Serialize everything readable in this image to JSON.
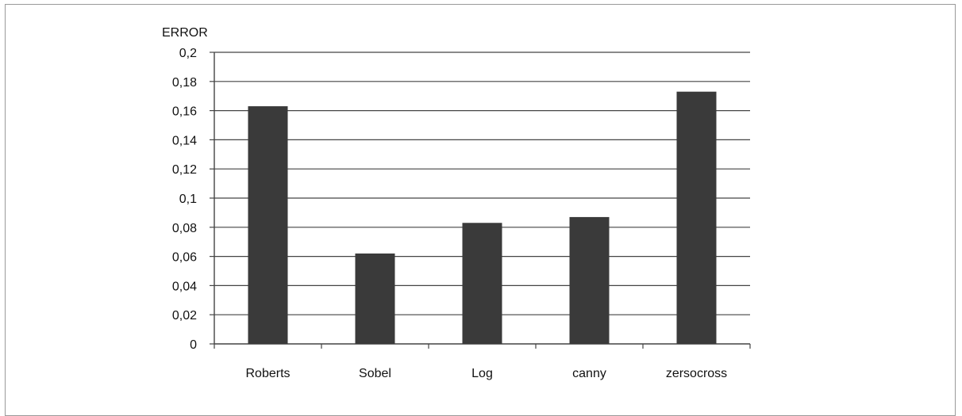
{
  "chart_data": {
    "type": "bar",
    "categories": [
      "Roberts",
      "Sobel",
      "Log",
      "canny",
      "zersocross"
    ],
    "values": [
      0.163,
      0.062,
      0.083,
      0.087,
      0.173
    ],
    "title": "",
    "xlabel": "",
    "ylabel": "ERROR",
    "ylim": [
      0,
      0.2
    ],
    "yticks": [
      0,
      0.02,
      0.04,
      0.06,
      0.08,
      0.1,
      0.12,
      0.14,
      0.16,
      0.18,
      0.2
    ],
    "ytick_labels": [
      "0",
      "0,02",
      "0,04",
      "0,06",
      "0,08",
      "0,1",
      "0,12",
      "0,14",
      "0,16",
      "0,18",
      "0,2"
    ],
    "grid": true,
    "legend": "none",
    "bar_color": "#3a3a3a",
    "grid_color": "#444444"
  }
}
